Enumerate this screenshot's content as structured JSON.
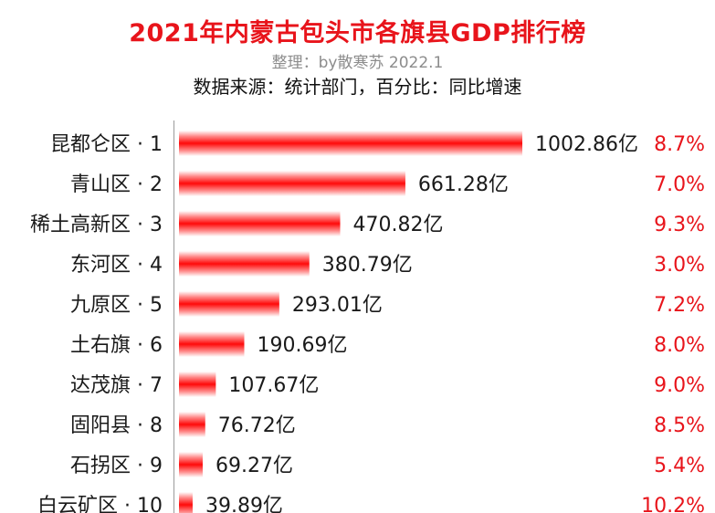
{
  "header": {
    "title": "2021年内蒙古包头市各旗县GDP排行榜",
    "credit": "整理：by散寒苏 2022.1",
    "source": "数据来源：统计部门，百分比：同比增速"
  },
  "colors": {
    "bar": "#ff1010",
    "title": "#e8141b",
    "growth": "#e8141b"
  },
  "chart_data": {
    "type": "bar",
    "orientation": "horizontal",
    "title": "2021年内蒙古包头市各旗县GDP排行榜",
    "categories": [
      "昆都仑区 · 1",
      "青山区 · 2",
      "稀土高新区 · 3",
      "东河区 · 4",
      "九原区 · 5",
      "土右旗 · 6",
      "达茂旗 · 7",
      "固阳县 · 8",
      "石拐区 · 9",
      "白云矿区 · 10"
    ],
    "values": [
      1002.86,
      661.28,
      470.82,
      380.79,
      293.01,
      190.69,
      107.67,
      76.72,
      69.27,
      39.89
    ],
    "value_labels": [
      "1002.86亿",
      "661.28亿",
      "470.82亿",
      "380.79亿",
      "293.01亿",
      "190.69亿",
      "107.67亿",
      "76.72亿",
      "69.27亿",
      "39.89亿"
    ],
    "growth_labels": [
      "8.7%",
      "7.0%",
      "9.3%",
      "3.0%",
      "7.2%",
      "8.0%",
      "9.0%",
      "8.5%",
      "5.4%",
      "10.2%"
    ],
    "xlim": [
      0,
      1002.86
    ],
    "grid": false
  }
}
